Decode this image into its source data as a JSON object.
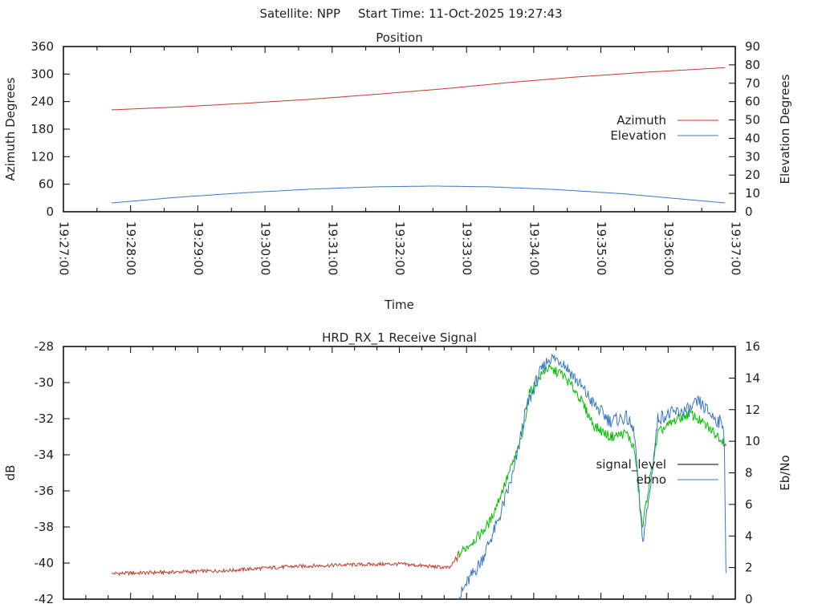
{
  "header": {
    "satellite_label": "Satellite: NPP",
    "start_time_label": "Start Time: 11-Oct-2025 19:27:43"
  },
  "chart_data": [
    {
      "type": "line",
      "title": "Position",
      "xlabel": "Time",
      "ylabel": "Azimuth Degrees",
      "y2label": "Elevation Degrees",
      "xlim_seconds": [
        0,
        600
      ],
      "x_tick_labels": [
        "19:27:00",
        "19:28:00",
        "19:29:00",
        "19:30:00",
        "19:31:00",
        "19:32:00",
        "19:33:00",
        "19:34:00",
        "19:35:00",
        "19:36:00",
        "19:37:00"
      ],
      "ylim": [
        0,
        360
      ],
      "y_ticks": [
        0,
        60,
        120,
        180,
        240,
        300,
        360
      ],
      "y2lim": [
        0,
        90
      ],
      "y2_ticks": [
        0,
        10,
        20,
        30,
        40,
        50,
        60,
        70,
        80,
        90
      ],
      "legend_position": "right",
      "series": [
        {
          "name": "Azimuth",
          "color": "#c0392b",
          "axis": "y",
          "x_seconds": [
            43,
            100,
            160,
            220,
            280,
            340,
            400,
            460,
            520,
            591
          ],
          "values": [
            222,
            228,
            236,
            245,
            256,
            268,
            282,
            294,
            304,
            314
          ]
        },
        {
          "name": "Elevation",
          "color": "#3a78c3",
          "axis": "y2",
          "x_seconds": [
            43,
            100,
            160,
            220,
            280,
            330,
            380,
            440,
            500,
            591
          ],
          "values": [
            4.8,
            7.8,
            10.3,
            12.3,
            13.6,
            14.0,
            13.6,
            12.1,
            9.8,
            4.8
          ]
        }
      ]
    },
    {
      "type": "line",
      "title": "HRD_RX_1 Receive Signal",
      "ylabel": "dB",
      "y2label": "Eb/No",
      "xlim_seconds": [
        0,
        600
      ],
      "ylim": [
        -42,
        -28
      ],
      "y_ticks": [
        -42,
        -40,
        -38,
        -36,
        -34,
        -32,
        -30,
        -28
      ],
      "y2lim": [
        0,
        16
      ],
      "y2_ticks": [
        0,
        2,
        4,
        6,
        8,
        10,
        12,
        14,
        16
      ],
      "legend_position": "right",
      "locked_interval_seconds": [
        353,
        590
      ],
      "series": [
        {
          "name": "signal_level",
          "color": "#000000",
          "unlocked_color": "#c0392b",
          "locked_color": "#00c000",
          "axis": "y",
          "x_seconds": [
            43,
            100,
            150,
            200,
            250,
            300,
            345,
            355,
            373,
            381,
            395,
            409,
            416,
            431,
            445,
            459,
            474,
            488,
            503,
            510,
            517,
            521,
            531,
            546,
            560,
            574,
            589,
            592
          ],
          "values": [
            -40.58,
            -40.5,
            -40.4,
            -40.2,
            -40.1,
            -40.05,
            -40.27,
            -39.4,
            -38.36,
            -37.7,
            -35.5,
            -33.2,
            -30.6,
            -29.2,
            -29.5,
            -30.6,
            -32.4,
            -33.0,
            -32.8,
            -33.7,
            -38.1,
            -36.4,
            -32.8,
            -32.1,
            -31.7,
            -32.4,
            -33.2,
            -33.5
          ]
        },
        {
          "name": "ebno",
          "color": "#3a78c3",
          "axis": "y2",
          "x_seconds": [
            353,
            359,
            373,
            388,
            402,
            413,
            424,
            434,
            445,
            459,
            474,
            488,
            503,
            510,
            517,
            523,
            531,
            546,
            560,
            567,
            581,
            590,
            592
          ],
          "values": [
            0,
            0.86,
            2.4,
            4.9,
            8.0,
            12.0,
            14.1,
            15.3,
            15.1,
            13.8,
            12.3,
            11.3,
            11.5,
            10.5,
            3.6,
            6.4,
            11.5,
            11.8,
            12.0,
            12.5,
            11.5,
            11.0,
            0
          ]
        }
      ]
    }
  ]
}
